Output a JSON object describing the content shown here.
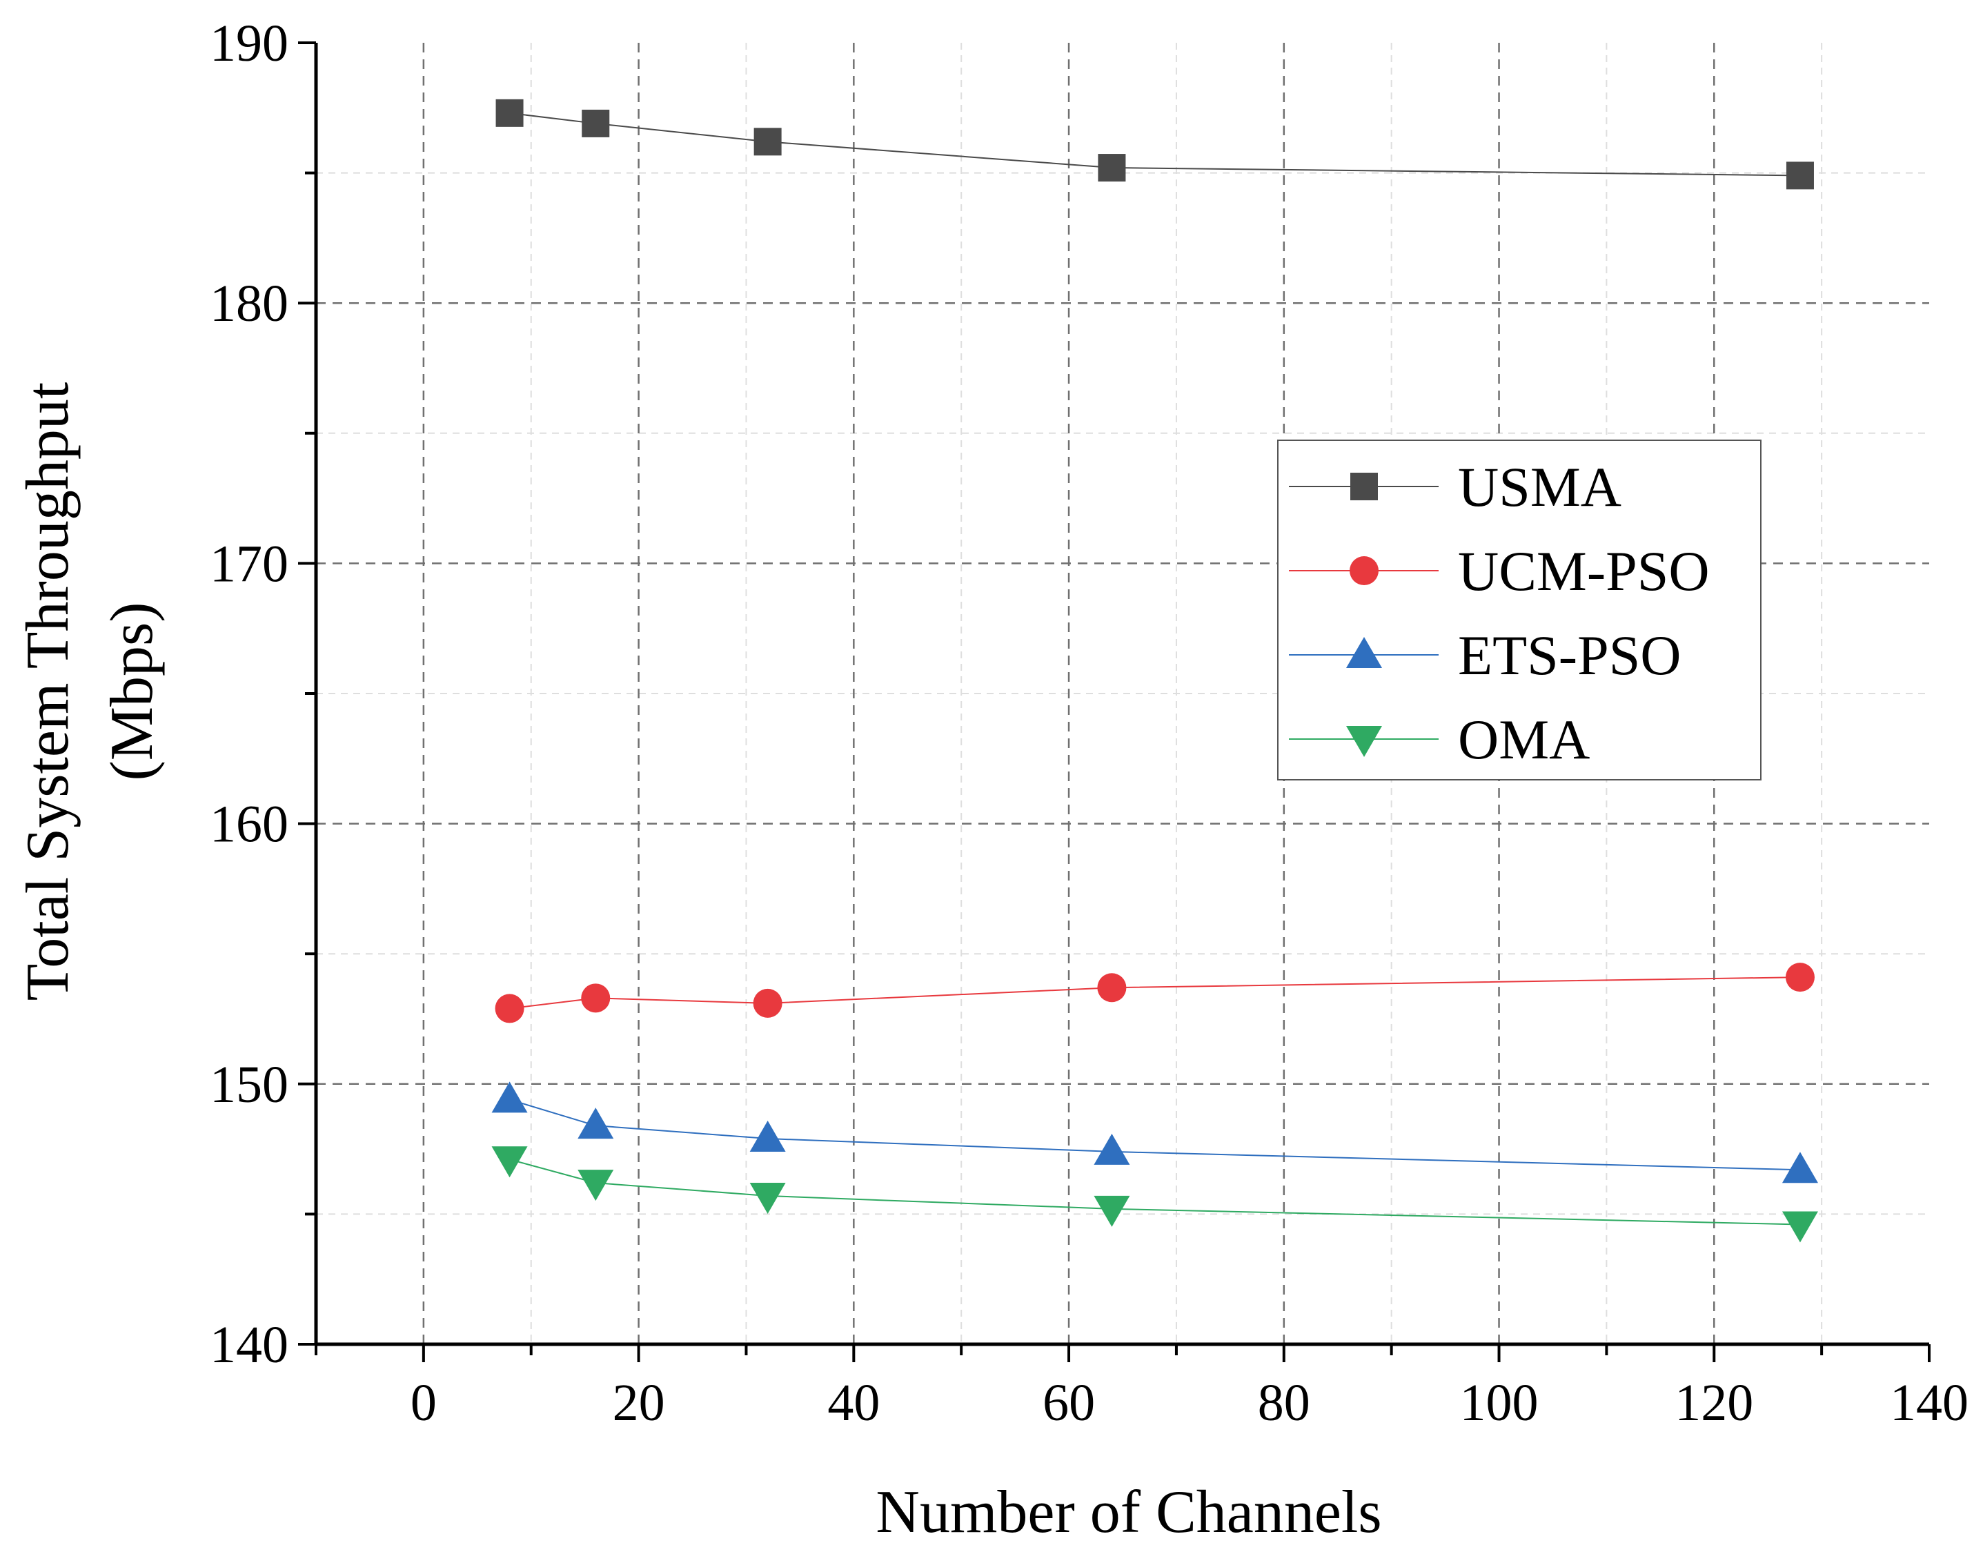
{
  "chart_data": {
    "type": "line",
    "title": "",
    "xlabel": "Number of Channels",
    "ylabel_lines": [
      "Total System Throughput",
      "(Mbps)"
    ],
    "xlim": [
      -10,
      140
    ],
    "ylim": [
      140,
      190
    ],
    "x_ticks": [
      0,
      20,
      40,
      60,
      80,
      100,
      120,
      140
    ],
    "y_ticks": [
      140,
      150,
      160,
      170,
      180,
      190
    ],
    "grid": true,
    "legend_position": "right-center",
    "x": [
      8,
      16,
      32,
      64,
      128
    ],
    "series": [
      {
        "name": "USMA",
        "marker": "square",
        "color": "#4a4a4a",
        "values": [
          187.3,
          186.9,
          186.2,
          185.2,
          184.9
        ]
      },
      {
        "name": "UCM-PSO",
        "marker": "circle",
        "color": "#e8393e",
        "values": [
          152.9,
          153.3,
          153.1,
          153.7,
          154.1
        ]
      },
      {
        "name": "ETS-PSO",
        "marker": "triangle-up",
        "color": "#2f6fbf",
        "values": [
          149.4,
          148.4,
          147.9,
          147.4,
          146.7
        ]
      },
      {
        "name": "OMA",
        "marker": "triangle-down",
        "color": "#2faa62",
        "values": [
          147.1,
          146.2,
          145.7,
          145.2,
          144.6
        ]
      }
    ]
  }
}
